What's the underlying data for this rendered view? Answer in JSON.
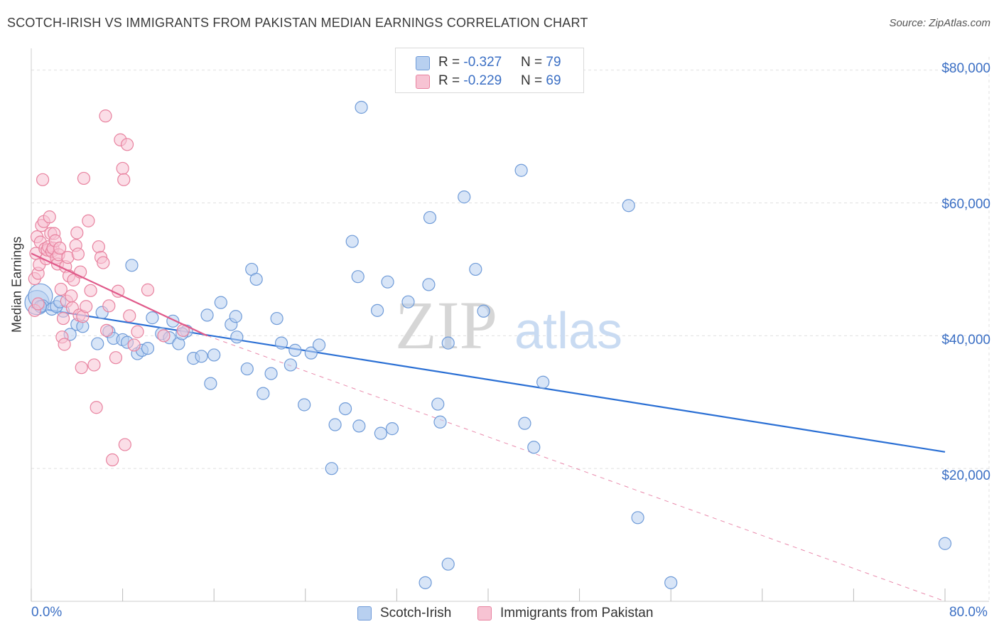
{
  "header": {
    "title": "SCOTCH-IRISH VS IMMIGRANTS FROM PAKISTAN MEDIAN EARNINGS CORRELATION CHART",
    "source": "Source: ZipAtlas.com"
  },
  "legend": {
    "series": [
      {
        "r_label": "R = ",
        "r_value": "-0.327",
        "n_label": "N = ",
        "n_value": "79"
      },
      {
        "r_label": "R = ",
        "r_value": "-0.229",
        "n_label": "N = ",
        "n_value": "69"
      }
    ]
  },
  "watermark": {
    "zip": "ZIP",
    "atlas": "atlas"
  },
  "colors": {
    "blue_fill": "#b8d0f0",
    "blue_stroke": "#6f9bd8",
    "blue_line": "#2a6fd4",
    "pink_fill": "#f7c3d3",
    "pink_stroke": "#e8829f",
    "pink_line": "#e05a8a",
    "axis_text": "#3b6fc4",
    "grid": "#e0e0e0"
  },
  "chart_data": {
    "type": "scatter",
    "title": "SCOTCH-IRISH VS IMMIGRANTS FROM PAKISTAN MEDIAN EARNINGS CORRELATION CHART",
    "xlabel": "",
    "ylabel": "Median Earnings",
    "xlim": [
      0,
      80
    ],
    "ylim": [
      0,
      82000
    ],
    "x_tick_labels": [
      "0.0%",
      "80.0%"
    ],
    "y_ticks": [
      {
        "value": 20000,
        "label": "$20,000"
      },
      {
        "value": 40000,
        "label": "$40,000"
      },
      {
        "value": 60000,
        "label": "$60,000"
      },
      {
        "value": 80000,
        "label": "$80,000"
      }
    ],
    "grid": "horizontal dashed",
    "legend_position": "top-center",
    "series": [
      {
        "name": "Scotch-Irish",
        "color": "#6f9bd8",
        "trend": {
          "x": [
            0.0,
            80.0
          ],
          "y": [
            44300,
            22500
          ],
          "style": "solid"
        },
        "points": [
          [
            0.5,
            45000
          ],
          [
            0.8,
            46000
          ],
          [
            1.0,
            44500
          ],
          [
            1.8,
            44000
          ],
          [
            2.8,
            43700
          ],
          [
            3.4,
            40200
          ],
          [
            4.0,
            41700
          ],
          [
            4.5,
            41400
          ],
          [
            5.8,
            38800
          ],
          [
            6.2,
            43500
          ],
          [
            6.8,
            40600
          ],
          [
            7.2,
            39600
          ],
          [
            8.0,
            39400
          ],
          [
            8.4,
            39000
          ],
          [
            9.3,
            37300
          ],
          [
            9.7,
            37800
          ],
          [
            10.2,
            38100
          ],
          [
            8.8,
            50600
          ],
          [
            10.6,
            42700
          ],
          [
            11.4,
            40300
          ],
          [
            12.1,
            39700
          ],
          [
            12.4,
            42200
          ],
          [
            12.9,
            38800
          ],
          [
            13.6,
            40700
          ],
          [
            14.2,
            36600
          ],
          [
            14.9,
            36900
          ],
          [
            15.4,
            43100
          ],
          [
            15.7,
            32800
          ],
          [
            16.0,
            37100
          ],
          [
            16.6,
            45000
          ],
          [
            17.5,
            41700
          ],
          [
            17.9,
            42900
          ],
          [
            18.0,
            39800
          ],
          [
            18.9,
            35000
          ],
          [
            19.3,
            50000
          ],
          [
            19.7,
            48500
          ],
          [
            20.3,
            31300
          ],
          [
            21.0,
            34300
          ],
          [
            21.5,
            42600
          ],
          [
            21.9,
            38900
          ],
          [
            22.7,
            35600
          ],
          [
            23.1,
            37800
          ],
          [
            23.9,
            29600
          ],
          [
            24.5,
            37400
          ],
          [
            25.2,
            38600
          ],
          [
            26.3,
            20000
          ],
          [
            26.6,
            26600
          ],
          [
            27.5,
            29000
          ],
          [
            28.1,
            54200
          ],
          [
            28.6,
            48900
          ],
          [
            28.7,
            26400
          ],
          [
            28.9,
            74400
          ],
          [
            30.3,
            43800
          ],
          [
            30.6,
            25300
          ],
          [
            31.2,
            48100
          ],
          [
            31.6,
            26000
          ],
          [
            33.0,
            45100
          ],
          [
            34.5,
            2800
          ],
          [
            34.8,
            47700
          ],
          [
            34.9,
            57800
          ],
          [
            35.6,
            29700
          ],
          [
            35.8,
            27000
          ],
          [
            36.5,
            38900
          ],
          [
            36.5,
            5600
          ],
          [
            37.9,
            60900
          ],
          [
            38.9,
            50000
          ],
          [
            39.6,
            43700
          ],
          [
            42.9,
            64900
          ],
          [
            43.2,
            26800
          ],
          [
            44.0,
            23200
          ],
          [
            44.8,
            33000
          ],
          [
            52.3,
            59600
          ],
          [
            53.1,
            12600
          ],
          [
            56.0,
            2800
          ],
          [
            80.0,
            8700
          ],
          [
            0.8,
            44400
          ],
          [
            2.2,
            44400
          ],
          [
            2.5,
            45100
          ],
          [
            13.2,
            40300
          ]
        ]
      },
      {
        "name": "Immigrants from Pakistan",
        "color": "#e8829f",
        "trend": {
          "x": [
            0.0,
            15.4
          ],
          "y": [
            52400,
            40000
          ],
          "style": "solid",
          "extension": {
            "x": [
              15.4,
              80.0
            ],
            "y": [
              40000,
              0
            ],
            "style": "dashed"
          }
        },
        "points": [
          [
            0.3,
            48600
          ],
          [
            0.4,
            52400
          ],
          [
            0.5,
            54900
          ],
          [
            0.6,
            49400
          ],
          [
            0.7,
            50700
          ],
          [
            0.8,
            54100
          ],
          [
            0.9,
            56600
          ],
          [
            1.0,
            63500
          ],
          [
            1.1,
            57200
          ],
          [
            1.2,
            53100
          ],
          [
            1.3,
            51600
          ],
          [
            1.4,
            52900
          ],
          [
            1.5,
            53400
          ],
          [
            1.6,
            57900
          ],
          [
            1.7,
            55400
          ],
          [
            1.8,
            52700
          ],
          [
            1.9,
            53200
          ],
          [
            2.0,
            55400
          ],
          [
            2.1,
            54300
          ],
          [
            2.2,
            51700
          ],
          [
            2.3,
            50800
          ],
          [
            2.4,
            52200
          ],
          [
            2.5,
            53200
          ],
          [
            2.6,
            47000
          ],
          [
            2.7,
            39800
          ],
          [
            2.8,
            42600
          ],
          [
            2.9,
            38700
          ],
          [
            3.0,
            50400
          ],
          [
            3.1,
            45200
          ],
          [
            3.2,
            51800
          ],
          [
            3.3,
            49000
          ],
          [
            3.5,
            46000
          ],
          [
            3.6,
            44200
          ],
          [
            3.7,
            48400
          ],
          [
            3.9,
            53600
          ],
          [
            4.0,
            55500
          ],
          [
            4.1,
            52300
          ],
          [
            4.2,
            43100
          ],
          [
            4.3,
            49600
          ],
          [
            4.4,
            35200
          ],
          [
            4.5,
            42900
          ],
          [
            4.6,
            63700
          ],
          [
            4.8,
            44400
          ],
          [
            5.0,
            57300
          ],
          [
            5.2,
            46800
          ],
          [
            5.5,
            35600
          ],
          [
            5.7,
            29200
          ],
          [
            5.9,
            53400
          ],
          [
            6.1,
            51800
          ],
          [
            6.3,
            51000
          ],
          [
            6.5,
            73100
          ],
          [
            6.6,
            40800
          ],
          [
            6.8,
            44500
          ],
          [
            7.1,
            21300
          ],
          [
            7.4,
            36700
          ],
          [
            7.6,
            46700
          ],
          [
            7.8,
            69500
          ],
          [
            8.0,
            65200
          ],
          [
            8.1,
            63500
          ],
          [
            8.2,
            23600
          ],
          [
            8.4,
            68800
          ],
          [
            8.6,
            43000
          ],
          [
            9.0,
            38600
          ],
          [
            9.3,
            40600
          ],
          [
            10.2,
            46900
          ],
          [
            11.6,
            40000
          ],
          [
            13.3,
            40800
          ],
          [
            0.3,
            43800
          ],
          [
            0.6,
            44800
          ]
        ]
      }
    ]
  },
  "axes": {
    "ylabel": "Median Earnings",
    "x_left": "0.0%",
    "x_right": "80.0%",
    "y_labels": [
      "$80,000",
      "$60,000",
      "$40,000",
      "$20,000"
    ]
  },
  "bottom_legend": {
    "items": [
      {
        "label": "Scotch-Irish"
      },
      {
        "label": "Immigrants from Pakistan"
      }
    ]
  }
}
